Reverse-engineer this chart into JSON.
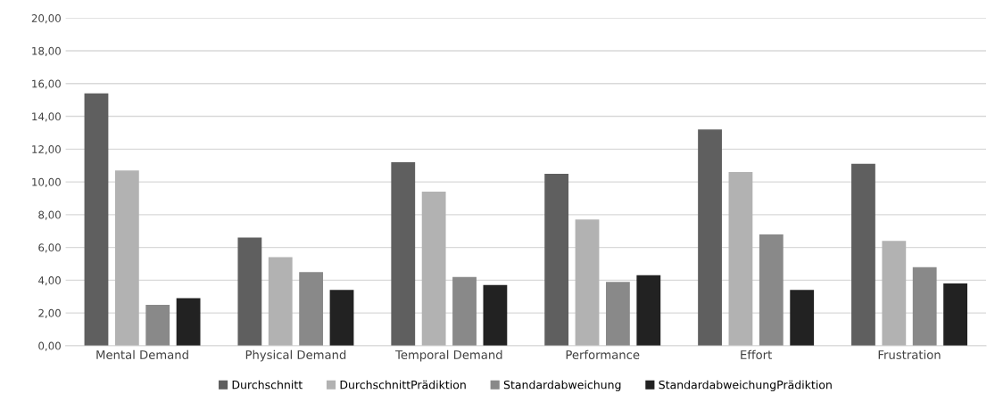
{
  "chart_data": {
    "type": "bar",
    "categories": [
      "Mental Demand",
      "Physical Demand",
      "Temporal Demand",
      "Performance",
      "Effort",
      "Frustration"
    ],
    "series": [
      {
        "name": "Durchschnitt",
        "color": "#5f5f5f",
        "values": [
          15.4,
          6.6,
          11.2,
          10.5,
          13.2,
          11.1
        ]
      },
      {
        "name": "DurchschnittPrädiktion",
        "color": "#b2b2b2",
        "values": [
          10.7,
          5.4,
          9.4,
          7.7,
          10.6,
          6.4
        ]
      },
      {
        "name": "Standardabweichung",
        "color": "#898989",
        "values": [
          2.5,
          4.5,
          4.2,
          3.9,
          6.8,
          4.8
        ]
      },
      {
        "name": "StandardabweichungPrädiktion",
        "color": "#222222",
        "values": [
          2.9,
          3.4,
          3.7,
          4.3,
          3.4,
          3.8
        ]
      }
    ],
    "ylim": [
      0,
      20
    ],
    "yticks": [
      {
        "value": 0,
        "label": "0,00"
      },
      {
        "value": 2,
        "label": "2,00"
      },
      {
        "value": 4,
        "label": "4,00"
      },
      {
        "value": 6,
        "label": "6,00"
      },
      {
        "value": 8,
        "label": "8,00"
      },
      {
        "value": 10,
        "label": "10,00"
      },
      {
        "value": 12,
        "label": "12,00"
      },
      {
        "value": 14,
        "label": "14,00"
      },
      {
        "value": 16,
        "label": "16,00"
      },
      {
        "value": 18,
        "label": "18,00"
      },
      {
        "value": 20,
        "label": "20,00"
      }
    ],
    "grid": "y",
    "legend": "bottom"
  }
}
